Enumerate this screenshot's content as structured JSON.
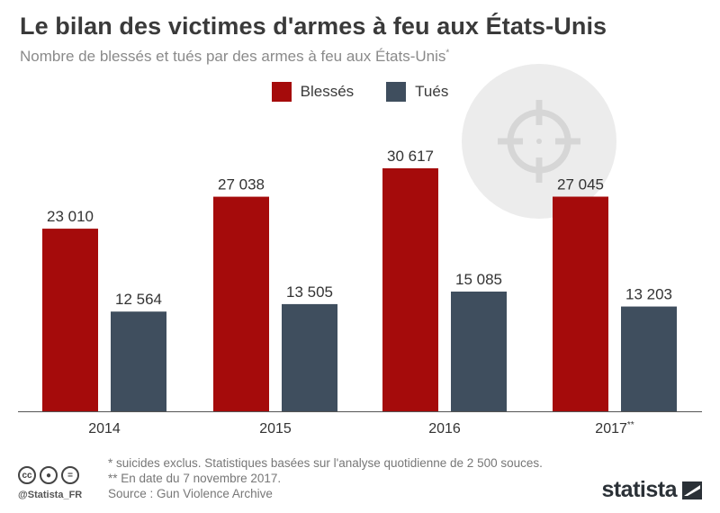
{
  "header": {
    "title": "Le bilan des victimes d'armes à feu aux États-Unis",
    "subtitle": "Nombre de blessés et tués par des armes à feu aux États-Unis",
    "subtitle_mark": "*"
  },
  "legend": [
    {
      "name": "Blessés",
      "color": "#a50b0b"
    },
    {
      "name": "Tués",
      "color": "#3f4e5e"
    }
  ],
  "chart_data": {
    "type": "bar",
    "categories": [
      "2014",
      "2015",
      "2016",
      "2017**"
    ],
    "series": [
      {
        "name": "Blessés",
        "values": [
          23010,
          27038,
          30617,
          27045
        ],
        "labels": [
          "23 010",
          "27 038",
          "30 617",
          "27 045"
        ],
        "color": "#a50b0b"
      },
      {
        "name": "Tués",
        "values": [
          12564,
          13505,
          15085,
          13203
        ],
        "labels": [
          "12 564",
          "13 505",
          "15 085",
          "13 203"
        ],
        "color": "#3f4e5e"
      }
    ],
    "ylim": [
      0,
      35000
    ],
    "grid": false,
    "legend_position": "top-center"
  },
  "notes": {
    "line1": "*   suicides exclus. Statistiques basées sur l'analyse quotidienne de 2 500 souces.",
    "line2": "** En date du 7 novembre 2017.",
    "source": "Source : Gun Violence Archive"
  },
  "footer": {
    "handle": "@Statista_FR",
    "logo": "statista",
    "cc_icons": [
      "cc-icon",
      "by-icon",
      "nd-icon"
    ]
  }
}
